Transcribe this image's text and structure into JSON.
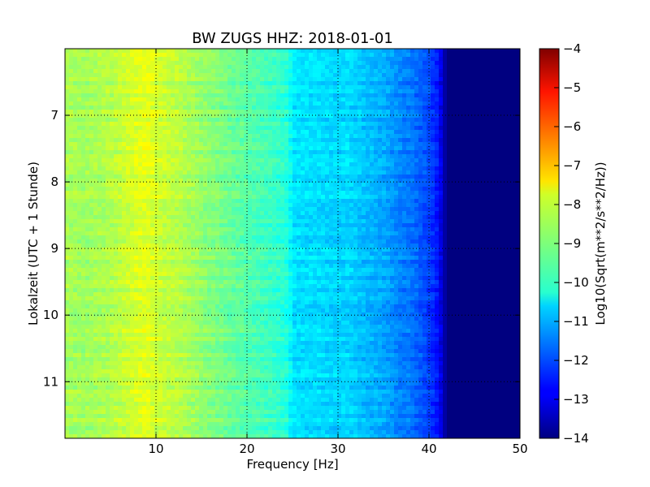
{
  "chart_data": {
    "type": "heatmap",
    "title": "BW ZUGS HHZ: 2018-01-01",
    "xlabel": "Frequency [Hz]",
    "ylabel": "Lokalzeit (UTC + 1 Stunde)",
    "xlim": [
      0,
      50
    ],
    "ylim": [
      6.0,
      11.85
    ],
    "y_inverted": true,
    "grid": true,
    "x_ticks": [
      10,
      20,
      30,
      40,
      50
    ],
    "x_tick_labels": [
      "10",
      "20",
      "30",
      "40",
      "50"
    ],
    "y_ticks": [
      7,
      8,
      9,
      10,
      11
    ],
    "y_tick_labels": [
      "7",
      "8",
      "9",
      "10",
      "11"
    ],
    "colorbar": {
      "label": "Log10(Sqrt(m**2/s**2/Hz))",
      "range": [
        -14,
        -4
      ],
      "ticks": [
        -4,
        -5,
        -6,
        -7,
        -8,
        -9,
        -10,
        -11,
        -12,
        -13,
        -14
      ],
      "tick_labels": [
        "−4",
        "−5",
        "−6",
        "−7",
        "−8",
        "−9",
        "−10",
        "−11",
        "−12",
        "−13",
        "−14"
      ],
      "colormap": "jet"
    },
    "spectrum_profile": {
      "frequency_hz": [
        0,
        2,
        5,
        8,
        9,
        10,
        13,
        15,
        18,
        20,
        22,
        24.5,
        25,
        28,
        30,
        31,
        33,
        35,
        37,
        38,
        40,
        41,
        42,
        45,
        50
      ],
      "log10_amplitude": [
        -8.6,
        -8.7,
        -8.5,
        -8.1,
        -8.0,
        -8.2,
        -8.5,
        -8.8,
        -9.2,
        -9.4,
        -9.6,
        -9.9,
        -10.5,
        -10.6,
        -10.7,
        -10.6,
        -10.9,
        -11.1,
        -11.5,
        -11.6,
        -12.1,
        -12.6,
        -14.0,
        -14.0,
        -14.0
      ]
    }
  }
}
